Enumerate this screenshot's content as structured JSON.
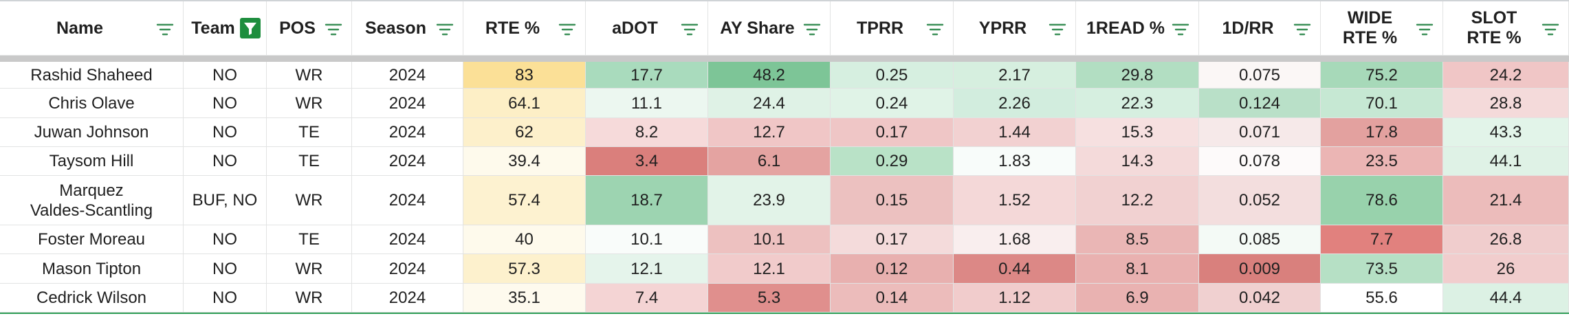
{
  "sheet": {
    "filtered_column": "Team",
    "columns": [
      {
        "label": "Name"
      },
      {
        "label": "Team"
      },
      {
        "label": "POS"
      },
      {
        "label": "Season"
      },
      {
        "label": "RTE %"
      },
      {
        "label": "aDOT"
      },
      {
        "label": "AY Share"
      },
      {
        "label": "TPRR"
      },
      {
        "label": "YPRR"
      },
      {
        "label": "1READ %"
      },
      {
        "label": "1D/RR"
      },
      {
        "label": "WIDE\nRTE %"
      },
      {
        "label": "SLOT\nRTE %"
      }
    ],
    "rows": [
      {
        "cells": [
          "Rashid Shaheed",
          "NO",
          "WR",
          "2024",
          "83",
          "17.7",
          "48.2",
          "0.25",
          "2.17",
          "29.8",
          "0.075",
          "75.2",
          "24.2"
        ],
        "colors": [
          "#ffffff",
          "#ffffff",
          "#ffffff",
          "#ffffff",
          "#fbe097",
          "#a9dbbd",
          "#7dc597",
          "#d6efe0",
          "#d6efdf",
          "#b2dec2",
          "#fbf7f6",
          "#a7d9b9",
          "#f0c6c6"
        ]
      },
      {
        "cells": [
          "Chris Olave",
          "NO",
          "WR",
          "2024",
          "64.1",
          "11.1",
          "24.4",
          "0.24",
          "2.26",
          "22.3",
          "0.124",
          "70.1",
          "28.8"
        ],
        "colors": [
          "#ffffff",
          "#ffffff",
          "#ffffff",
          "#ffffff",
          "#fdefc6",
          "#ecf7f0",
          "#dff2e6",
          "#e0f3e7",
          "#d2edde",
          "#d6efe0",
          "#b9e0c8",
          "#c6e8d3",
          "#f4dada"
        ]
      },
      {
        "cells": [
          "Juwan Johnson",
          "NO",
          "TE",
          "2024",
          "62",
          "8.2",
          "12.7",
          "0.17",
          "1.44",
          "15.3",
          "0.071",
          "17.8",
          "43.3"
        ],
        "colors": [
          "#ffffff",
          "#ffffff",
          "#ffffff",
          "#ffffff",
          "#fdf0cb",
          "#f6dada",
          "#f0c6c6",
          "#efc6c6",
          "#f2d1d1",
          "#f6e0e0",
          "#f6e9e9",
          "#e3a19f",
          "#e2f4e9"
        ]
      },
      {
        "cells": [
          "Taysom Hill",
          "NO",
          "TE",
          "2024",
          "39.4",
          "3.4",
          "6.1",
          "0.29",
          "1.83",
          "14.3",
          "0.078",
          "23.5",
          "44.1"
        ],
        "colors": [
          "#ffffff",
          "#ffffff",
          "#ffffff",
          "#ffffff",
          "#fefaec",
          "#da7f7c",
          "#e4a3a1",
          "#b9e2c7",
          "#f8fcfa",
          "#f4dada",
          "#fdfafa",
          "#ebb5b4",
          "#dff2e6"
        ]
      },
      {
        "cells": [
          "Marquez\nValdes-Scantling",
          "BUF, NO",
          "WR",
          "2024",
          "57.4",
          "18.7",
          "23.9",
          "0.15",
          "1.52",
          "12.2",
          "0.052",
          "78.6",
          "21.4"
        ],
        "colors": [
          "#ffffff",
          "#ffffff",
          "#ffffff",
          "#ffffff",
          "#fdf2d0",
          "#9dd4b1",
          "#e2f3e8",
          "#ecc1c0",
          "#f4d8d8",
          "#f1d1d1",
          "#f3dede",
          "#98d2ac",
          "#ecbcbb"
        ]
      },
      {
        "cells": [
          "Foster Moreau",
          "NO",
          "TE",
          "2024",
          "40",
          "10.1",
          "10.1",
          "0.17",
          "1.68",
          "8.5",
          "0.085",
          "7.7",
          "26.8"
        ],
        "colors": [
          "#ffffff",
          "#ffffff",
          "#ffffff",
          "#ffffff",
          "#fefaec",
          "#f9fcfa",
          "#edc1c0",
          "#f4dbdb",
          "#f9eeee",
          "#eab6b5",
          "#f4faf6",
          "#e1817e",
          "#f0cdcd"
        ]
      },
      {
        "cells": [
          "Mason Tipton",
          "NO",
          "WR",
          "2024",
          "57.3",
          "12.1",
          "12.1",
          "0.12",
          "0.44",
          "8.1",
          "0.009",
          "73.5",
          "26"
        ],
        "colors": [
          "#ffffff",
          "#ffffff",
          "#ffffff",
          "#ffffff",
          "#fdf1cd",
          "#e5f4eb",
          "#f1cbcb",
          "#e8b0af",
          "#dc8886",
          "#e9b1b0",
          "#d9807d",
          "#b6e0c5",
          "#f1cdcd"
        ]
      },
      {
        "cells": [
          "Cedrick Wilson",
          "NO",
          "WR",
          "2024",
          "35.1",
          "7.4",
          "5.3",
          "0.14",
          "1.12",
          "6.9",
          "0.042",
          "55.6",
          "44.4"
        ],
        "colors": [
          "#ffffff",
          "#ffffff",
          "#ffffff",
          "#ffffff",
          "#fefaee",
          "#f4d4d4",
          "#e08f8d",
          "#ecbcbb",
          "#f1cccc",
          "#e9b2b1",
          "#f0d0d0",
          "#ffffff",
          "#dcf1e4"
        ]
      }
    ]
  }
}
